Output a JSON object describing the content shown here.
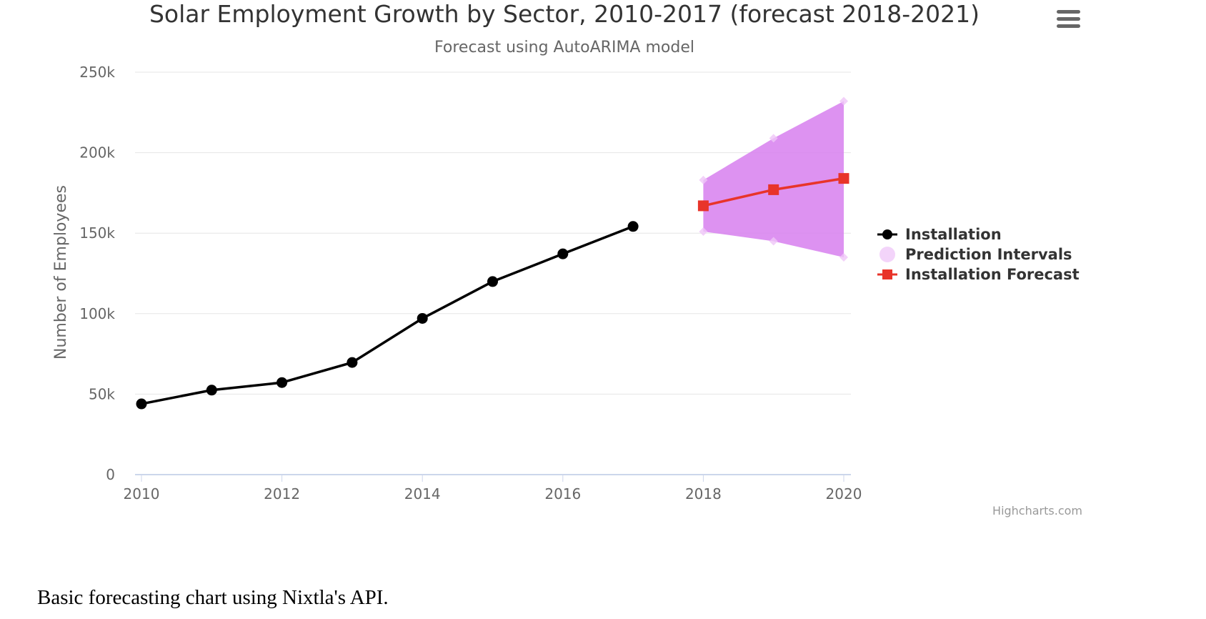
{
  "chart_data": {
    "type": "line",
    "title": "Solar Employment Growth by Sector, 2010-2017 (forecast 2018-2021)",
    "subtitle": "Forecast using AutoARIMA model",
    "ylabel": "Number of Employees",
    "xlabel": "",
    "ylim": [
      0,
      250000
    ],
    "xlim": [
      2010,
      2020
    ],
    "x_ticks": [
      "2010",
      "2012",
      "2014",
      "2016",
      "2018",
      "2020"
    ],
    "y_ticks": [
      "0",
      "50k",
      "100k",
      "150k",
      "200k",
      "250k"
    ],
    "grid": true,
    "legend_position": "right",
    "series": [
      {
        "name": "Installation",
        "color": "#000000",
        "marker": "circle",
        "x": [
          2010,
          2011,
          2012,
          2013,
          2014,
          2015,
          2016,
          2017
        ],
        "values": [
          43934,
          52503,
          57177,
          69658,
          97031,
          119931,
          137133,
          154175
        ]
      },
      {
        "name": "Prediction Intervals",
        "type": "arearange",
        "color": "#d77fee",
        "x": [
          2018,
          2019,
          2020
        ],
        "low": [
          151000,
          145000,
          135000
        ],
        "high": [
          183000,
          209000,
          232000
        ]
      },
      {
        "name": "Installation Forecast",
        "color": "#e8342a",
        "marker": "square",
        "x": [
          2018,
          2019,
          2020
        ],
        "values": [
          167000,
          177000,
          184000
        ]
      }
    ]
  },
  "credits": "Highcharts.com",
  "caption": "Basic forecasting chart using Nixtla's API.",
  "menu_icon": "hamburger-menu-icon"
}
